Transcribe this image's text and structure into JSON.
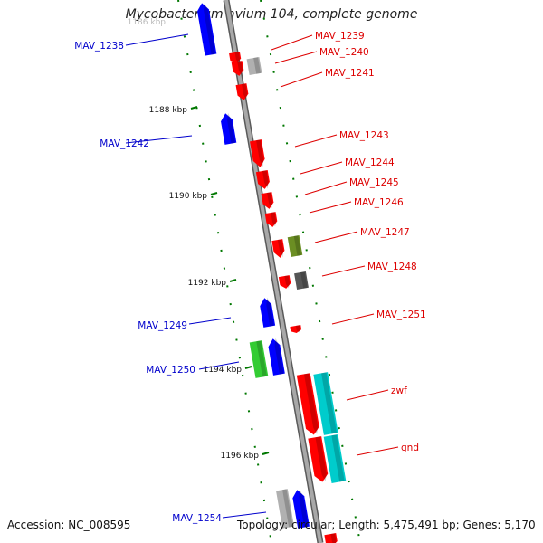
{
  "title": "Mycobacterium avium 104, complete genome",
  "accession": "Accession: NC_008595",
  "topology": "Topology: circular; Length: 5,475,491 bp; Genes: 5,170",
  "colors": {
    "backbone": "#808080",
    "forward_gene": "#ff0000",
    "reverse_gene": "#0000ff",
    "forward_label": "#dd0000",
    "reverse_label": "#0000cc",
    "ticks": "#007700",
    "rna_green": "#33cc33",
    "olive": "#6b8e23",
    "cyan": "#00cccc",
    "grey": "#b0b0b0",
    "dark_grey": "#555555"
  },
  "ticks": [
    "1188 kbp",
    "1190 kbp",
    "1192 kbp",
    "1194 kbp",
    "1196 kbp"
  ],
  "reverse_labels": [
    "MAV_1238",
    "MAV_1242",
    "MAV_1249",
    "MAV_1250",
    "MAV_1254"
  ],
  "forward_labels": [
    "MAV_1239",
    "MAV_1240",
    "MAV_1241",
    "MAV_1243",
    "MAV_1244",
    "MAV_1245",
    "MAV_1246",
    "MAV_1247",
    "MAV_1248",
    "MAV_1251",
    "zwf",
    "gnd"
  ],
  "top_tick": "1186 kbp"
}
